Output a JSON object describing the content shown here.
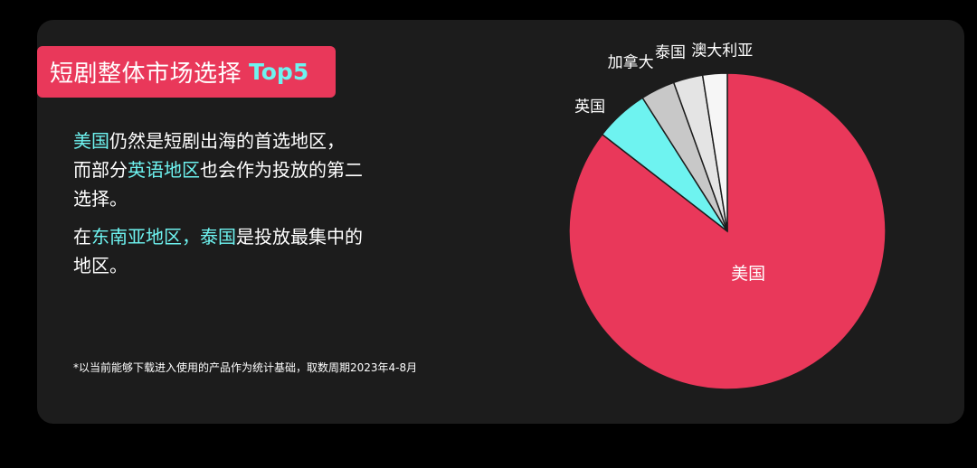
{
  "header": {
    "title": "短剧整体市场选择",
    "title_accent": "Top5"
  },
  "body": {
    "p1": {
      "a": "美国",
      "b": "仍然是短剧出海的首选地区，",
      "c": "而部分",
      "d": "英语地区",
      "e": "也会作为投放的第二选择。"
    },
    "p2": {
      "a": "在",
      "b": "东南亚地区，",
      "c": "泰国",
      "d": "是投放最集中的地区。"
    },
    "note": "*以当前能够下载进入使用的产品作为统计基础，取数周期2023年4-8月"
  },
  "colors": {
    "background": "#000000",
    "card": "#1c1c1c",
    "accent_red": "#e9385a",
    "accent_cyan": "#6ef3f0"
  },
  "chart_data": {
    "type": "pie",
    "start_angle_deg": 0,
    "direction": "clockwise",
    "slices": [
      {
        "label": "美国",
        "value": 85.5,
        "color": "#e9385a",
        "label_pos": "inside"
      },
      {
        "label": "英国",
        "value": 5.5,
        "color": "#6ef3f0",
        "label_pos": "outside"
      },
      {
        "label": "加拿大",
        "value": 3.5,
        "color": "#c8c8c8",
        "label_pos": "outside"
      },
      {
        "label": "泰国",
        "value": 3.0,
        "color": "#e4e4e4",
        "label_pos": "outside"
      },
      {
        "label": "澳大利亚",
        "value": 2.5,
        "color": "#f6f6f6",
        "label_pos": "outside"
      }
    ]
  }
}
